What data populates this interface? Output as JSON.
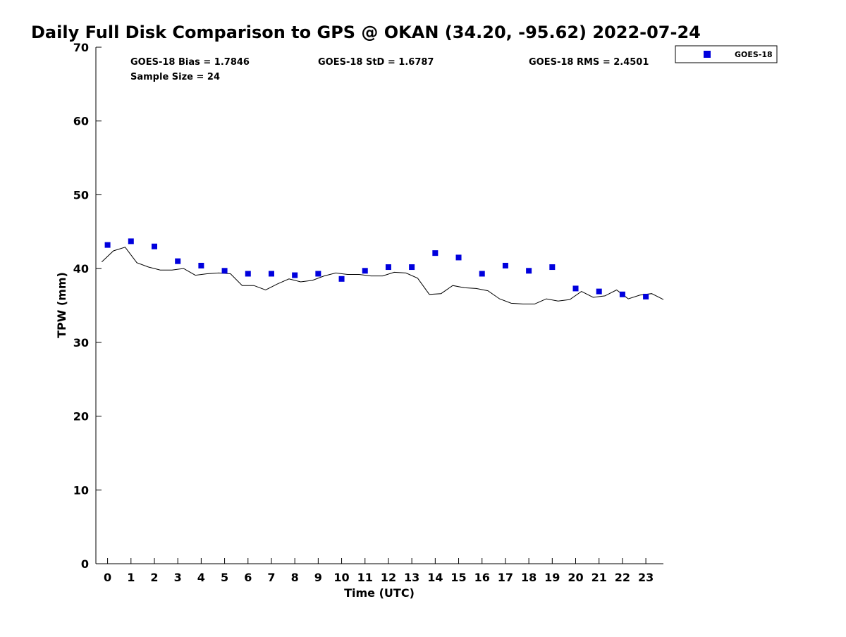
{
  "chart_data": {
    "type": "scatter",
    "title": "Daily Full Disk Comparison to GPS @ OKAN (34.20, -95.62) 2022-07-24",
    "xlabel": "Time (UTC)",
    "ylabel": "TPW (mm)",
    "xlim": [
      -0.5,
      23.75
    ],
    "ylim": [
      0,
      70
    ],
    "x_ticks": [
      0,
      1,
      2,
      3,
      4,
      5,
      6,
      7,
      8,
      9,
      10,
      11,
      12,
      13,
      14,
      15,
      16,
      17,
      18,
      19,
      20,
      21,
      22,
      23
    ],
    "y_ticks": [
      0,
      10,
      20,
      30,
      40,
      50,
      60,
      70
    ],
    "grid": false,
    "legend_placement": "outside-top-right",
    "series": [
      {
        "name": "GOES-18",
        "kind": "scatter",
        "marker": "square",
        "color": "#0000dd",
        "x": [
          0,
          1,
          2,
          3,
          4,
          5,
          6,
          7,
          8,
          9,
          10,
          11,
          12,
          13,
          14,
          15,
          16,
          17,
          18,
          19,
          20,
          21,
          22,
          23
        ],
        "y": [
          43.2,
          43.7,
          43.0,
          41.0,
          40.4,
          39.7,
          39.3,
          39.3,
          39.1,
          39.3,
          38.6,
          39.7,
          40.2,
          40.2,
          42.1,
          41.5,
          39.3,
          40.4,
          39.7,
          40.2,
          37.3,
          36.9,
          36.5,
          36.2
        ]
      },
      {
        "kind": "line",
        "color": "#000000",
        "x": [
          -0.25,
          0.25,
          0.75,
          1.25,
          1.75,
          2.25,
          2.75,
          3.25,
          3.75,
          4.25,
          4.75,
          5.25,
          5.75,
          6.25,
          6.75,
          7.25,
          7.75,
          8.25,
          8.75,
          9.25,
          9.75,
          10.25,
          10.75,
          11.25,
          11.75,
          12.25,
          12.75,
          13.25,
          13.75,
          14.25,
          14.75,
          15.25,
          15.75,
          16.25,
          16.75,
          17.25,
          17.75,
          18.25,
          18.75,
          19.25,
          19.75,
          20.25,
          20.75,
          21.25,
          21.75,
          22.25,
          22.75,
          23.25,
          23.75
        ],
        "y": [
          40.9,
          42.4,
          42.9,
          40.8,
          40.2,
          39.8,
          39.8,
          40.0,
          39.1,
          39.3,
          39.4,
          39.3,
          37.7,
          37.7,
          37.1,
          37.9,
          38.6,
          38.2,
          38.4,
          39.0,
          39.4,
          39.2,
          39.2,
          39.0,
          39.0,
          39.5,
          39.4,
          38.7,
          36.5,
          36.6,
          37.7,
          37.4,
          37.3,
          37.0,
          35.9,
          35.3,
          35.2,
          35.2,
          35.9,
          35.6,
          35.8,
          36.9,
          36.1,
          36.3,
          37.1,
          35.9,
          36.4,
          36.6,
          35.8
        ]
      }
    ],
    "annotations": {
      "bias": "GOES-18 Bias = 1.7846",
      "std": "GOES-18 StD = 1.6787",
      "rms": "GOES-18 RMS = 2.4501",
      "sample_size": "Sample Size = 24"
    }
  }
}
